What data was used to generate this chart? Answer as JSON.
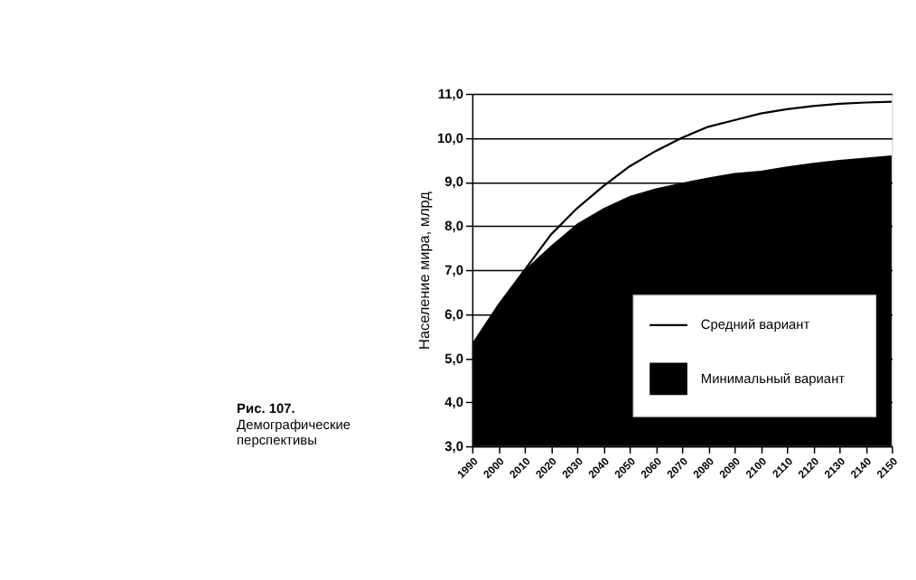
{
  "chart_data": {
    "type": "line",
    "ylabel": "Население мира, млрд",
    "x": [
      1990,
      2000,
      2010,
      2020,
      2030,
      2040,
      2050,
      2060,
      2070,
      2080,
      2090,
      2100,
      2110,
      2120,
      2130,
      2140,
      2150
    ],
    "series": [
      {
        "name": "Средний вариант",
        "type": "line",
        "color": "#000000",
        "values": [
          5.3,
          6.2,
          7.0,
          7.8,
          8.4,
          8.9,
          9.35,
          9.7,
          10.0,
          10.25,
          10.4,
          10.55,
          10.65,
          10.72,
          10.77,
          10.8,
          10.82
        ]
      },
      {
        "name": "Минимальный вариант",
        "type": "area",
        "color": "#000000",
        "values": [
          5.3,
          6.2,
          7.0,
          7.55,
          8.05,
          8.4,
          8.68,
          8.85,
          8.98,
          9.1,
          9.2,
          9.25,
          9.35,
          9.43,
          9.5,
          9.55,
          9.6
        ]
      }
    ],
    "xlim": [
      1990,
      2150
    ],
    "xticks": [
      1990,
      2000,
      2010,
      2020,
      2030,
      2040,
      2050,
      2060,
      2070,
      2080,
      2090,
      2100,
      2110,
      2120,
      2130,
      2140,
      2150
    ],
    "ylim": [
      3,
      11
    ],
    "yticks": [
      {
        "value": 3,
        "label": "3,0"
      },
      {
        "value": 4,
        "label": "4,0"
      },
      {
        "value": 5,
        "label": "5,0"
      },
      {
        "value": 6,
        "label": "6,0"
      },
      {
        "value": 7,
        "label": "7,0"
      },
      {
        "value": 8,
        "label": "8,0"
      },
      {
        "value": 9,
        "label": "9,0"
      },
      {
        "value": 10,
        "label": "10,0"
      },
      {
        "value": 11,
        "label": "11,0"
      }
    ],
    "grid": "y",
    "legend": "bottom right",
    "line_style": "solid",
    "annotations": [
      "Рис. 107.",
      "Демографические",
      "перспективы"
    ]
  }
}
